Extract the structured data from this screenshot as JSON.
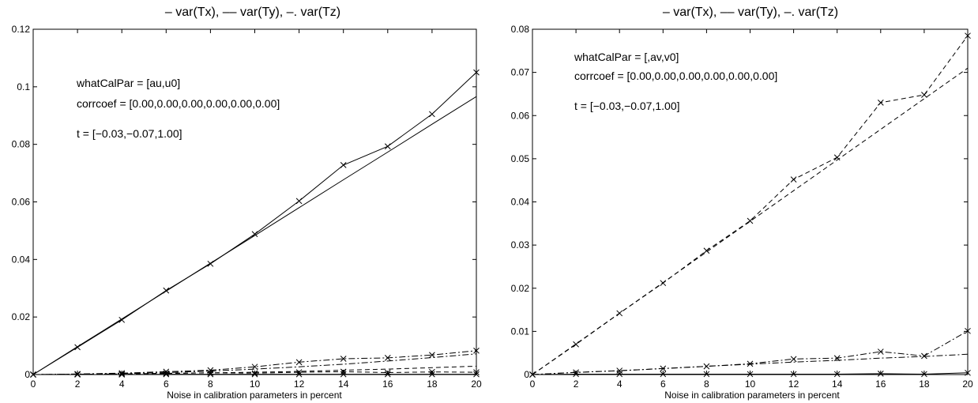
{
  "colors": {
    "line": "#000000",
    "background": "#ffffff"
  },
  "chart_data": [
    {
      "type": "line",
      "title": "– var(Tx), –– var(Ty), –. var(Tz)",
      "xlabel": "Noise in calibration parameters in percent",
      "ylabel": "",
      "xlim": [
        0,
        20
      ],
      "ylim": [
        0,
        0.12
      ],
      "grid": false,
      "xticks": [
        "0",
        "2",
        "4",
        "6",
        "8",
        "10",
        "12",
        "14",
        "16",
        "18",
        "20"
      ],
      "yticks": [
        "0",
        "0.02",
        "0.04",
        "0.06",
        "0.08",
        "0.1",
        "0.12"
      ],
      "annotations": [
        "whatCalPar = [au,u0]",
        "corrcoef = [0.00,0.00,0.00,0.00,0.00,0.00]",
        "t = [−0.03,−0.07,1.00]"
      ],
      "x": [
        0,
        2,
        4,
        6,
        8,
        10,
        12,
        14,
        16,
        18,
        20
      ],
      "series": [
        {
          "style": "solid",
          "markers": true,
          "values": [
            0,
            0.0095,
            0.019,
            0.0292,
            0.0385,
            0.0488,
            0.0603,
            0.0728,
            0.0793,
            0.0905,
            0.105
          ]
        },
        {
          "style": "solid",
          "markers": false,
          "values": [
            0,
            0.0097,
            0.0193,
            0.029,
            0.0387,
            0.0483,
            0.058,
            0.0677,
            0.0773,
            0.087,
            0.0966
          ]
        },
        {
          "style": "dashdot",
          "markers": true,
          "values": [
            0,
            0.0002,
            0.0005,
            0.001,
            0.0015,
            0.0027,
            0.0043,
            0.0055,
            0.0058,
            0.0068,
            0.0083
          ]
        },
        {
          "style": "dashdot",
          "markers": false,
          "values": [
            0,
            0.0001,
            0.0003,
            0.0007,
            0.0012,
            0.0019,
            0.0027,
            0.0036,
            0.0047,
            0.0059,
            0.0072
          ]
        },
        {
          "style": "dashed",
          "markers": true,
          "values": [
            0,
            0.0001,
            0.0002,
            0.0004,
            0.0006,
            0.0005,
            0.0008,
            0.001,
            0.0007,
            0.0009,
            0.0008
          ]
        },
        {
          "style": "dashed",
          "markers": false,
          "values": [
            0,
            0.0001,
            0.0002,
            0.0004,
            0.0006,
            0.0008,
            0.0011,
            0.0015,
            0.0019,
            0.0024,
            0.0029
          ]
        },
        {
          "style": "solid",
          "markers": true,
          "values": [
            0,
            0,
            0,
            0.0001,
            0.0001,
            0.0001,
            0.0001,
            0.0001,
            0.0001,
            0.0001,
            0.0001
          ]
        }
      ]
    },
    {
      "type": "line",
      "title": "– var(Tx), –– var(Ty), –. var(Tz)",
      "xlabel": "Noise in calibration parameters in percent",
      "ylabel": "",
      "xlim": [
        0,
        20
      ],
      "ylim": [
        0,
        0.08
      ],
      "grid": false,
      "xticks": [
        "0",
        "2",
        "4",
        "6",
        "8",
        "10",
        "12",
        "14",
        "16",
        "18",
        "20"
      ],
      "yticks": [
        "0",
        "0.01",
        "0.02",
        "0.03",
        "0.04",
        "0.05",
        "0.06",
        "0.07",
        "0.08"
      ],
      "annotations": [
        "whatCalPar = [,av,v0]",
        "corrcoef = [0.00,0.00,0.00,0.00,0.00,0.00]",
        "t = [−0.03,−0.07,1.00]"
      ],
      "x": [
        0,
        2,
        4,
        6,
        8,
        10,
        12,
        14,
        16,
        18,
        20
      ],
      "series": [
        {
          "style": "dashed",
          "markers": true,
          "values": [
            0,
            0.007,
            0.0142,
            0.0212,
            0.0287,
            0.0356,
            0.0452,
            0.0503,
            0.063,
            0.0648,
            0.0785
          ]
        },
        {
          "style": "dashed",
          "markers": false,
          "values": [
            0,
            0.0071,
            0.0142,
            0.0213,
            0.0284,
            0.0355,
            0.0426,
            0.0497,
            0.0568,
            0.0639,
            0.071
          ]
        },
        {
          "style": "dashdot",
          "markers": true,
          "values": [
            0,
            0.0005,
            0.0009,
            0.0014,
            0.0019,
            0.0025,
            0.0036,
            0.0038,
            0.0053,
            0.0043,
            0.0101
          ]
        },
        {
          "style": "dashdot",
          "markers": false,
          "values": [
            0,
            0.0005,
            0.0009,
            0.0014,
            0.0019,
            0.0024,
            0.0029,
            0.0033,
            0.0038,
            0.0042,
            0.0047
          ]
        },
        {
          "style": "solid",
          "markers": true,
          "values": [
            0,
            0.0001,
            0.0001,
            0.0001,
            0.0001,
            0.0001,
            0.0001,
            0.0001,
            0.0002,
            0.0001,
            0.0004
          ]
        }
      ]
    }
  ]
}
